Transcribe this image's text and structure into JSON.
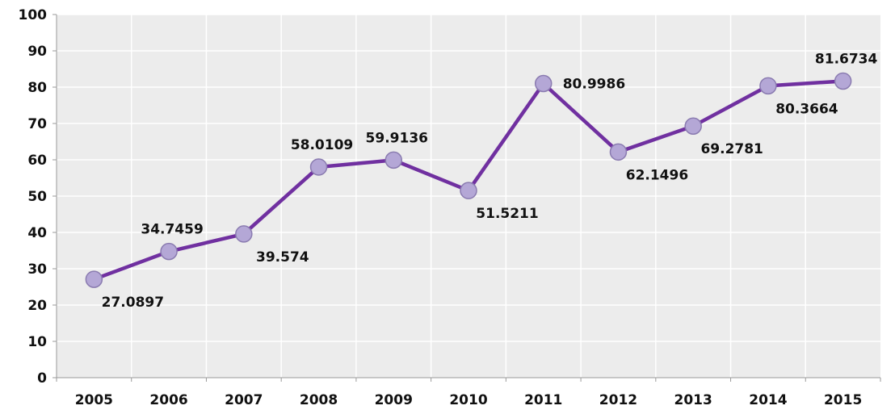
{
  "chart_data": {
    "type": "line",
    "title": "",
    "xlabel": "",
    "ylabel": "",
    "categories": [
      "2005",
      "2006",
      "2007",
      "2008",
      "2009",
      "2010",
      "2011",
      "2012",
      "2013",
      "2014",
      "2015"
    ],
    "series": [
      {
        "values": [
          27.0897,
          34.7459,
          39.574,
          58.0109,
          59.9136,
          51.5211,
          80.9986,
          62.1496,
          69.2781,
          80.3664,
          81.6734
        ],
        "labels": [
          "27.0897",
          "34.7459",
          "39.574",
          "58.0109",
          "59.9136",
          "51.5211",
          "80.9986",
          "62.1496",
          "69.2781",
          "80.3664",
          "81.6734"
        ],
        "label_side": [
          "below",
          "above",
          "below",
          "above",
          "above",
          "below",
          "right",
          "below",
          "below",
          "below",
          "above"
        ],
        "line_color": "#7030A0",
        "marker_fill": "#B4A7D6"
      }
    ],
    "ylim": [
      0,
      100
    ],
    "yticks": [
      "0",
      "10",
      "20",
      "30",
      "40",
      "50",
      "60",
      "70",
      "80",
      "90",
      "100"
    ],
    "grid": true,
    "legend": "none",
    "plot_background": "#ECECEC",
    "grid_color": "#FFFFFF"
  }
}
